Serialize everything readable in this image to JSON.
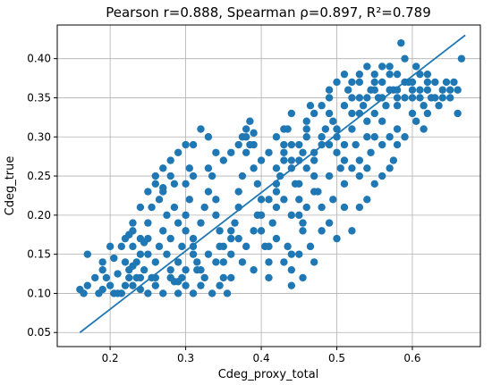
{
  "chart_data": {
    "type": "scatter",
    "title": "Pearson r=0.888, Spearman ρ=0.897, R²=0.789",
    "xlabel": "Cdeg_proxy_total",
    "ylabel": "Cdeg_true",
    "xlim": [
      0.13,
      0.69
    ],
    "ylim": [
      0.032,
      0.443
    ],
    "xticks": [
      0.2,
      0.3,
      0.4,
      0.5,
      0.6
    ],
    "xtick_labels": [
      "0.2",
      "0.3",
      "0.4",
      "0.5",
      "0.6"
    ],
    "yticks": [
      0.05,
      0.1,
      0.15,
      0.2,
      0.25,
      0.3,
      0.35,
      0.4
    ],
    "ytick_labels": [
      "0.05",
      "0.10",
      "0.15",
      "0.20",
      "0.25",
      "0.30",
      "0.35",
      "0.40"
    ],
    "grid": true,
    "legend": "none",
    "colors": {
      "points": "#1f77b4",
      "fit_line": "#1f77b4",
      "grid": "#b0b0b0"
    },
    "fit_line": {
      "x": [
        0.16,
        0.67
      ],
      "y": [
        0.05,
        0.43
      ]
    },
    "points": [
      [
        0.16,
        0.105
      ],
      [
        0.17,
        0.11
      ],
      [
        0.165,
        0.1
      ],
      [
        0.19,
        0.13
      ],
      [
        0.19,
        0.14
      ],
      [
        0.195,
        0.12
      ],
      [
        0.185,
        0.1
      ],
      [
        0.2,
        0.11
      ],
      [
        0.21,
        0.125
      ],
      [
        0.205,
        0.145
      ],
      [
        0.215,
        0.16
      ],
      [
        0.22,
        0.17
      ],
      [
        0.225,
        0.175
      ],
      [
        0.23,
        0.18
      ],
      [
        0.225,
        0.13
      ],
      [
        0.215,
        0.1
      ],
      [
        0.22,
        0.11
      ],
      [
        0.235,
        0.12
      ],
      [
        0.24,
        0.105
      ],
      [
        0.23,
        0.135
      ],
      [
        0.245,
        0.165
      ],
      [
        0.25,
        0.17
      ],
      [
        0.25,
        0.15
      ],
      [
        0.245,
        0.13
      ],
      [
        0.255,
        0.12
      ],
      [
        0.26,
        0.11
      ],
      [
        0.26,
        0.14
      ],
      [
        0.265,
        0.16
      ],
      [
        0.27,
        0.18
      ],
      [
        0.265,
        0.22
      ],
      [
        0.27,
        0.235
      ],
      [
        0.28,
        0.25
      ],
      [
        0.285,
        0.24
      ],
      [
        0.275,
        0.2
      ],
      [
        0.28,
        0.17
      ],
      [
        0.275,
        0.15
      ],
      [
        0.28,
        0.13
      ],
      [
        0.285,
        0.115
      ],
      [
        0.29,
        0.1
      ],
      [
        0.295,
        0.12
      ],
      [
        0.29,
        0.14
      ],
      [
        0.295,
        0.16
      ],
      [
        0.3,
        0.18
      ],
      [
        0.3,
        0.2
      ],
      [
        0.305,
        0.22
      ],
      [
        0.31,
        0.25
      ],
      [
        0.305,
        0.26
      ],
      [
        0.3,
        0.24
      ],
      [
        0.31,
        0.17
      ],
      [
        0.31,
        0.15
      ],
      [
        0.315,
        0.13
      ],
      [
        0.32,
        0.11
      ],
      [
        0.32,
        0.19
      ],
      [
        0.325,
        0.21
      ],
      [
        0.33,
        0.23
      ],
      [
        0.33,
        0.26
      ],
      [
        0.335,
        0.25
      ],
      [
        0.34,
        0.22
      ],
      [
        0.34,
        0.2
      ],
      [
        0.345,
        0.18
      ],
      [
        0.345,
        0.16
      ],
      [
        0.35,
        0.14
      ],
      [
        0.35,
        0.12
      ],
      [
        0.355,
        0.1
      ],
      [
        0.36,
        0.15
      ],
      [
        0.36,
        0.17
      ],
      [
        0.365,
        0.19
      ],
      [
        0.37,
        0.21
      ],
      [
        0.37,
        0.23
      ],
      [
        0.375,
        0.25
      ],
      [
        0.375,
        0.3
      ],
      [
        0.38,
        0.31
      ],
      [
        0.385,
        0.32
      ],
      [
        0.39,
        0.305
      ],
      [
        0.385,
        0.29
      ],
      [
        0.38,
        0.28
      ],
      [
        0.39,
        0.26
      ],
      [
        0.395,
        0.24
      ],
      [
        0.4,
        0.22
      ],
      [
        0.395,
        0.2
      ],
      [
        0.4,
        0.18
      ],
      [
        0.405,
        0.16
      ],
      [
        0.41,
        0.14
      ],
      [
        0.41,
        0.12
      ],
      [
        0.415,
        0.19
      ],
      [
        0.42,
        0.21
      ],
      [
        0.42,
        0.23
      ],
      [
        0.425,
        0.25
      ],
      [
        0.43,
        0.27
      ],
      [
        0.43,
        0.29
      ],
      [
        0.435,
        0.31
      ],
      [
        0.44,
        0.33
      ],
      [
        0.44,
        0.26
      ],
      [
        0.445,
        0.24
      ],
      [
        0.45,
        0.22
      ],
      [
        0.45,
        0.2
      ],
      [
        0.455,
        0.18
      ],
      [
        0.455,
        0.28
      ],
      [
        0.46,
        0.3
      ],
      [
        0.46,
        0.32
      ],
      [
        0.465,
        0.34
      ],
      [
        0.47,
        0.27
      ],
      [
        0.47,
        0.25
      ],
      [
        0.475,
        0.23
      ],
      [
        0.48,
        0.21
      ],
      [
        0.48,
        0.29
      ],
      [
        0.485,
        0.31
      ],
      [
        0.49,
        0.33
      ],
      [
        0.49,
        0.35
      ],
      [
        0.495,
        0.32
      ],
      [
        0.5,
        0.3
      ],
      [
        0.5,
        0.28
      ],
      [
        0.505,
        0.26
      ],
      [
        0.51,
        0.24
      ],
      [
        0.51,
        0.34
      ],
      [
        0.515,
        0.36
      ],
      [
        0.52,
        0.33
      ],
      [
        0.52,
        0.31
      ],
      [
        0.525,
        0.29
      ],
      [
        0.53,
        0.35
      ],
      [
        0.53,
        0.37
      ],
      [
        0.535,
        0.34
      ],
      [
        0.54,
        0.32
      ],
      [
        0.54,
        0.3
      ],
      [
        0.545,
        0.36
      ],
      [
        0.55,
        0.38
      ],
      [
        0.55,
        0.33
      ],
      [
        0.555,
        0.35
      ],
      [
        0.56,
        0.37
      ],
      [
        0.56,
        0.32
      ],
      [
        0.565,
        0.34
      ],
      [
        0.57,
        0.39
      ],
      [
        0.575,
        0.36
      ],
      [
        0.58,
        0.38
      ],
      [
        0.58,
        0.34
      ],
      [
        0.585,
        0.42
      ],
      [
        0.59,
        0.4
      ],
      [
        0.595,
        0.37
      ],
      [
        0.6,
        0.35
      ],
      [
        0.605,
        0.39
      ],
      [
        0.61,
        0.36
      ],
      [
        0.615,
        0.34
      ],
      [
        0.62,
        0.38
      ],
      [
        0.625,
        0.35
      ],
      [
        0.63,
        0.37
      ],
      [
        0.635,
        0.34
      ],
      [
        0.64,
        0.36
      ],
      [
        0.645,
        0.37
      ],
      [
        0.65,
        0.35
      ],
      [
        0.655,
        0.37
      ],
      [
        0.66,
        0.33
      ],
      [
        0.665,
        0.4
      ],
      [
        0.575,
        0.27
      ],
      [
        0.56,
        0.29
      ],
      [
        0.545,
        0.28
      ],
      [
        0.53,
        0.27
      ],
      [
        0.52,
        0.26
      ],
      [
        0.51,
        0.21
      ],
      [
        0.495,
        0.22
      ],
      [
        0.48,
        0.18
      ],
      [
        0.465,
        0.16
      ],
      [
        0.45,
        0.15
      ],
      [
        0.44,
        0.15
      ],
      [
        0.43,
        0.14
      ],
      [
        0.44,
        0.13
      ],
      [
        0.455,
        0.12
      ],
      [
        0.42,
        0.17
      ],
      [
        0.41,
        0.16
      ],
      [
        0.435,
        0.16
      ],
      [
        0.47,
        0.14
      ],
      [
        0.44,
        0.11
      ],
      [
        0.39,
        0.13
      ],
      [
        0.375,
        0.14
      ],
      [
        0.36,
        0.12
      ],
      [
        0.345,
        0.11
      ],
      [
        0.335,
        0.1
      ],
      [
        0.325,
        0.12
      ],
      [
        0.315,
        0.14
      ],
      [
        0.31,
        0.16
      ],
      [
        0.3,
        0.13
      ],
      [
        0.29,
        0.19
      ],
      [
        0.285,
        0.21
      ],
      [
        0.27,
        0.23
      ],
      [
        0.26,
        0.24
      ],
      [
        0.255,
        0.21
      ],
      [
        0.25,
        0.19
      ],
      [
        0.24,
        0.17
      ],
      [
        0.24,
        0.15
      ],
      [
        0.235,
        0.14
      ],
      [
        0.23,
        0.11
      ],
      [
        0.225,
        0.12
      ],
      [
        0.21,
        0.1
      ],
      [
        0.2,
        0.16
      ],
      [
        0.17,
        0.15
      ],
      [
        0.18,
        0.12
      ],
      [
        0.19,
        0.105
      ],
      [
        0.205,
        0.1
      ],
      [
        0.22,
        0.14
      ],
      [
        0.23,
        0.16
      ],
      [
        0.24,
        0.12
      ],
      [
        0.25,
        0.1
      ],
      [
        0.26,
        0.12
      ],
      [
        0.27,
        0.1
      ],
      [
        0.28,
        0.12
      ],
      [
        0.29,
        0.115
      ],
      [
        0.3,
        0.11
      ],
      [
        0.31,
        0.1
      ],
      [
        0.32,
        0.13
      ],
      [
        0.33,
        0.15
      ],
      [
        0.34,
        0.14
      ],
      [
        0.35,
        0.16
      ],
      [
        0.36,
        0.18
      ],
      [
        0.37,
        0.17
      ],
      [
        0.38,
        0.16
      ],
      [
        0.39,
        0.18
      ],
      [
        0.4,
        0.2
      ],
      [
        0.41,
        0.22
      ],
      [
        0.42,
        0.24
      ],
      [
        0.43,
        0.22
      ],
      [
        0.44,
        0.2
      ],
      [
        0.45,
        0.24
      ],
      [
        0.46,
        0.26
      ],
      [
        0.47,
        0.28
      ],
      [
        0.48,
        0.3
      ],
      [
        0.49,
        0.29
      ],
      [
        0.5,
        0.31
      ],
      [
        0.51,
        0.29
      ],
      [
        0.52,
        0.35
      ],
      [
        0.53,
        0.33
      ],
      [
        0.54,
        0.35
      ],
      [
        0.55,
        0.36
      ],
      [
        0.56,
        0.35
      ],
      [
        0.57,
        0.36
      ],
      [
        0.58,
        0.36
      ],
      [
        0.59,
        0.37
      ],
      [
        0.6,
        0.37
      ],
      [
        0.61,
        0.38
      ],
      [
        0.62,
        0.36
      ],
      [
        0.63,
        0.35
      ],
      [
        0.64,
        0.35
      ],
      [
        0.65,
        0.36
      ],
      [
        0.66,
        0.36
      ],
      [
        0.62,
        0.33
      ],
      [
        0.6,
        0.33
      ],
      [
        0.58,
        0.31
      ],
      [
        0.57,
        0.3
      ],
      [
        0.55,
        0.3
      ],
      [
        0.54,
        0.26
      ],
      [
        0.53,
        0.25
      ],
      [
        0.51,
        0.27
      ],
      [
        0.49,
        0.25
      ],
      [
        0.47,
        0.23
      ],
      [
        0.46,
        0.21
      ],
      [
        0.455,
        0.19
      ],
      [
        0.45,
        0.27
      ],
      [
        0.44,
        0.29
      ],
      [
        0.43,
        0.31
      ],
      [
        0.42,
        0.3
      ],
      [
        0.41,
        0.28
      ],
      [
        0.4,
        0.27
      ],
      [
        0.39,
        0.29
      ],
      [
        0.38,
        0.3
      ],
      [
        0.37,
        0.29
      ],
      [
        0.36,
        0.28
      ],
      [
        0.35,
        0.27
      ],
      [
        0.34,
        0.28
      ],
      [
        0.33,
        0.3
      ],
      [
        0.32,
        0.31
      ],
      [
        0.31,
        0.29
      ],
      [
        0.3,
        0.29
      ],
      [
        0.29,
        0.28
      ],
      [
        0.28,
        0.27
      ],
      [
        0.27,
        0.26
      ],
      [
        0.26,
        0.25
      ],
      [
        0.25,
        0.23
      ],
      [
        0.24,
        0.21
      ],
      [
        0.23,
        0.19
      ],
      [
        0.42,
        0.26
      ],
      [
        0.43,
        0.28
      ],
      [
        0.44,
        0.27
      ],
      [
        0.45,
        0.29
      ],
      [
        0.46,
        0.31
      ],
      [
        0.47,
        0.33
      ],
      [
        0.48,
        0.34
      ],
      [
        0.49,
        0.36
      ],
      [
        0.5,
        0.37
      ],
      [
        0.51,
        0.38
      ],
      [
        0.52,
        0.37
      ],
      [
        0.53,
        0.38
      ],
      [
        0.54,
        0.39
      ],
      [
        0.55,
        0.37
      ],
      [
        0.56,
        0.39
      ],
      [
        0.57,
        0.38
      ],
      [
        0.58,
        0.35
      ],
      [
        0.59,
        0.35
      ],
      [
        0.6,
        0.36
      ],
      [
        0.61,
        0.35
      ],
      [
        0.62,
        0.37
      ],
      [
        0.49,
        0.19
      ],
      [
        0.5,
        0.17
      ],
      [
        0.52,
        0.18
      ],
      [
        0.53,
        0.21
      ],
      [
        0.54,
        0.22
      ],
      [
        0.55,
        0.24
      ],
      [
        0.56,
        0.25
      ],
      [
        0.57,
        0.26
      ],
      [
        0.58,
        0.29
      ],
      [
        0.59,
        0.3
      ],
      [
        0.605,
        0.32
      ],
      [
        0.615,
        0.31
      ]
    ]
  }
}
